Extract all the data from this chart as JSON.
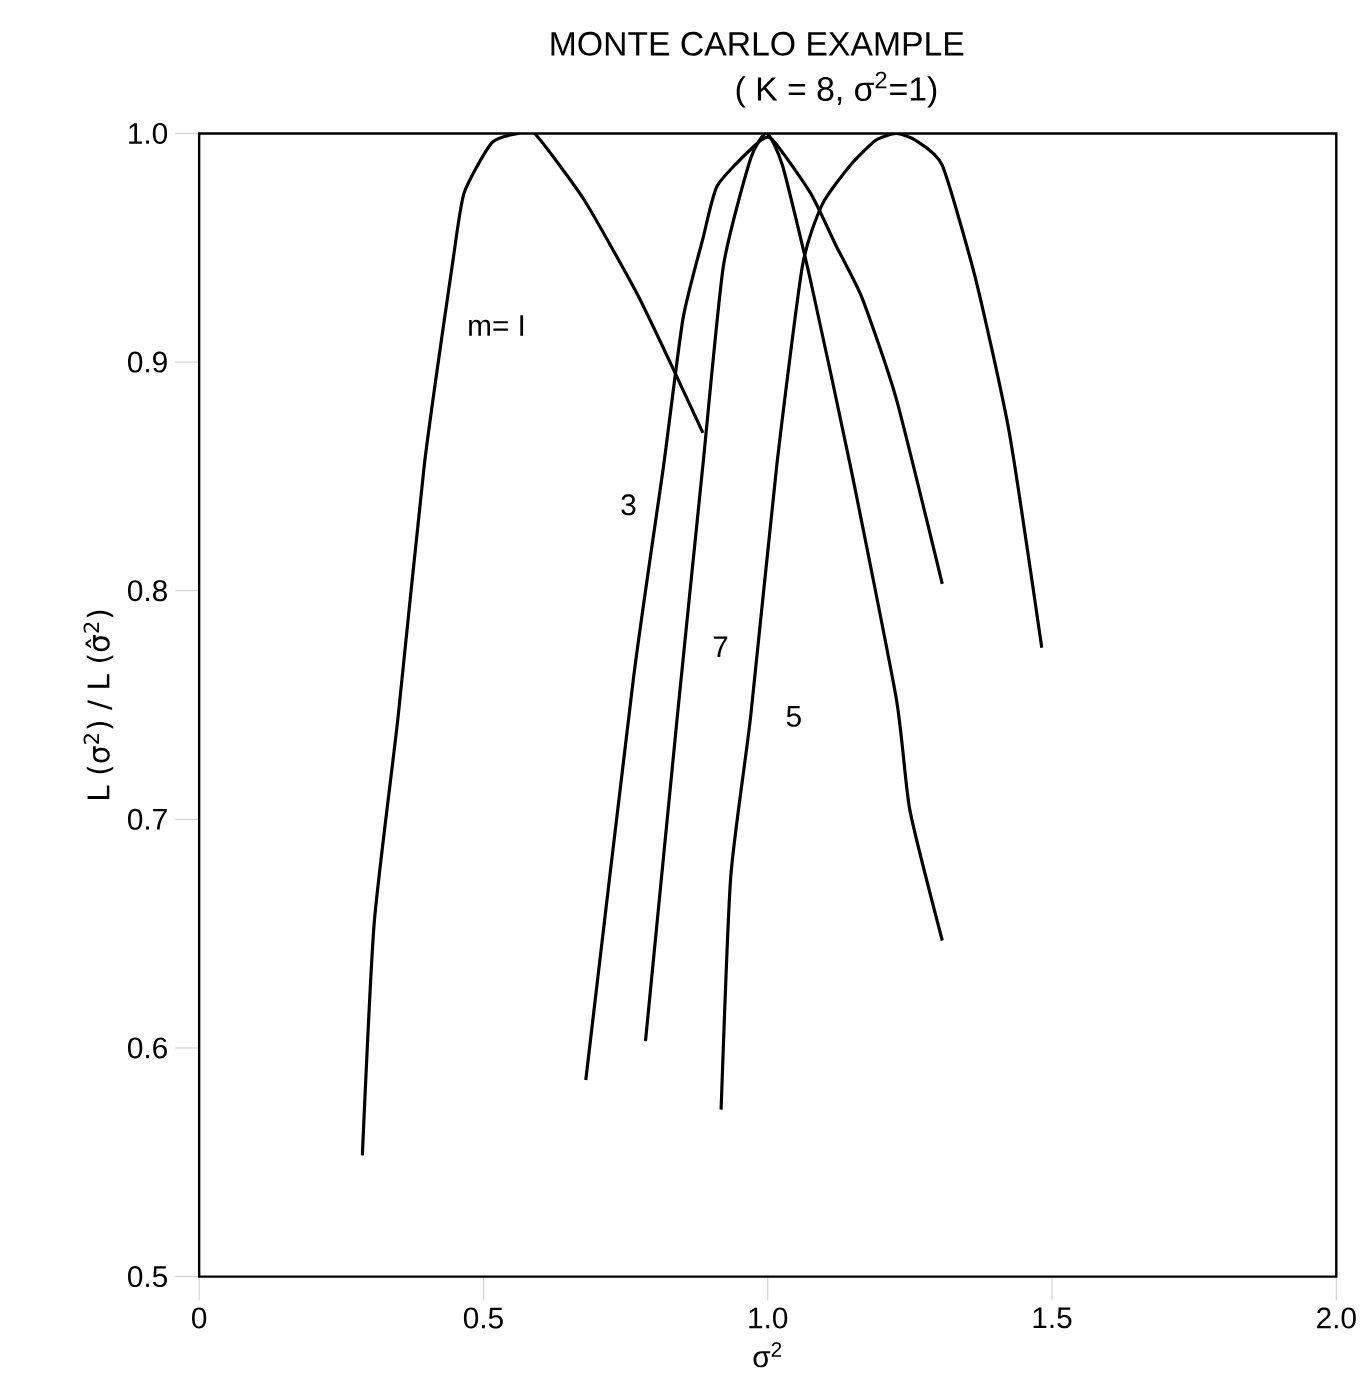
{
  "chart_data": {
    "type": "line",
    "title": "MONTE CARLO EXAMPLE",
    "subtitle": "( K = 8, σ$^{2}$=1)",
    "xlabel": "σ$^{2}$",
    "ylabel": "L (σ$^{2}$) / L (σ̂$^{2}$)",
    "xlim": [
      0,
      2
    ],
    "ylim": [
      0.5,
      1
    ],
    "xticks": [
      0,
      0.5,
      {
        "value": 1,
        "label": "1.0"
      },
      1.5,
      {
        "value": 2,
        "label": "2.0"
      }
    ],
    "yticks": [
      0.5,
      0.6,
      0.7,
      0.8,
      0.9,
      {
        "value": 1,
        "label": "1.0"
      }
    ],
    "grid": false,
    "legend": false,
    "marker": "none",
    "line_style": "solid",
    "series": [
      {
        "name": "m= I",
        "color": "#000000",
        "x": [
          0.287,
          0.308,
          0.35,
          0.396,
          0.445,
          0.466,
          0.515,
          0.56,
          0.59,
          0.677,
          0.77,
          0.83,
          0.886
        ],
        "values": [
          0.553,
          0.655,
          0.745,
          0.855,
          0.942,
          0.974,
          0.996,
          1.0,
          1.0,
          0.971,
          0.93,
          0.899,
          0.869
        ]
      },
      {
        "name": "3",
        "color": "#000000",
        "x": [
          0.68,
          0.764,
          0.817,
          0.851,
          0.886,
          0.911,
          0.97,
          1.005,
          1.075,
          1.12,
          1.166,
          1.226,
          1.307
        ],
        "values": [
          0.586,
          0.762,
          0.855,
          0.919,
          0.954,
          0.977,
          0.993,
          0.998,
          0.974,
          0.951,
          0.928,
          0.884,
          0.803
        ]
      },
      {
        "name": "7",
        "color": "#000000",
        "x": [
          0.785,
          0.841,
          0.886,
          0.922,
          0.97,
          0.998,
          1.026,
          1.075,
          1.145,
          1.226,
          1.25,
          1.307
        ],
        "values": [
          0.603,
          0.745,
          0.855,
          0.942,
          0.989,
          1.0,
          0.986,
          0.936,
          0.855,
          0.753,
          0.704,
          0.647
        ]
      },
      {
        "name": "5",
        "color": "#000000",
        "x": [
          0.918,
          0.935,
          0.97,
          1.016,
          1.061,
          1.096,
          1.145,
          1.19,
          1.226,
          1.26,
          1.307,
          1.366,
          1.425,
          1.482
        ],
        "values": [
          0.573,
          0.675,
          0.745,
          0.855,
          0.942,
          0.969,
          0.986,
          0.997,
          1.0,
          0.997,
          0.986,
          0.936,
          0.869,
          0.775
        ]
      }
    ]
  }
}
